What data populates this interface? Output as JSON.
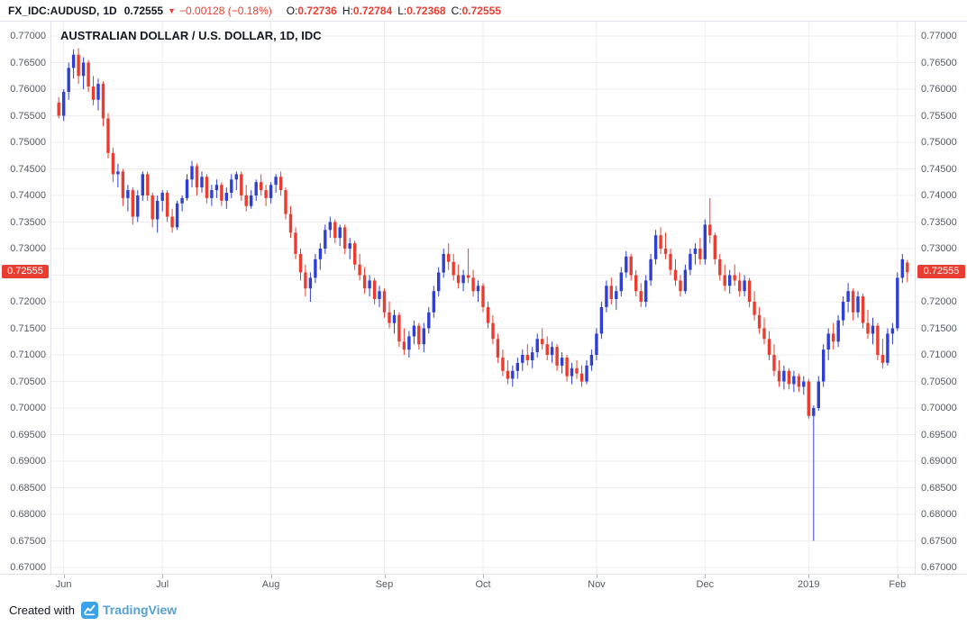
{
  "header": {
    "symbol": "FX_IDC:AUDUSD,",
    "interval": "1D",
    "last_price": "0.72555",
    "direction_icon": "▼",
    "change": "−0.00128 (−0.18%)",
    "ohlc": {
      "o_label": "O:",
      "o": "0.72736",
      "h_label": "H:",
      "h": "0.72784",
      "l_label": "L:",
      "l": "0.72368",
      "c_label": "C:",
      "c": "0.72555"
    }
  },
  "chart": {
    "title": "AUSTRALIAN DOLLAR / U.S. DOLLAR, 1D, IDC",
    "price_label": "0.72555"
  },
  "footer": {
    "created_with": "Created with",
    "brand": "TradingView"
  },
  "colors": {
    "up": "#2f3fd3",
    "down": "#ea3d32",
    "tag_bg": "#ea3d32",
    "grid": "#ededf0",
    "axis_text": "#555b66",
    "brand": "#3aa2e8"
  },
  "chart_data": {
    "type": "candlestick",
    "title": "AUSTRALIAN DOLLAR / U.S. DOLLAR, 1D, IDC",
    "symbol": "AUDUSD",
    "interval": "1D",
    "y_min": 0.67,
    "y_max": 0.77,
    "tick_step": 0.005,
    "last_close": 0.72555,
    "y_ticks": [
      "0.77000",
      "0.76500",
      "0.76000",
      "0.75500",
      "0.75000",
      "0.74500",
      "0.74000",
      "0.73500",
      "0.73000",
      "0.72500",
      "0.72000",
      "0.71500",
      "0.71000",
      "0.70500",
      "0.70000",
      "0.69500",
      "0.69000",
      "0.68500",
      "0.68000",
      "0.67500",
      "0.67000"
    ],
    "x_ticks": [
      {
        "label": "Jun",
        "index": 1
      },
      {
        "label": "Jul",
        "index": 21
      },
      {
        "label": "Aug",
        "index": 43
      },
      {
        "label": "Sep",
        "index": 66
      },
      {
        "label": "Oct",
        "index": 86
      },
      {
        "label": "Nov",
        "index": 109
      },
      {
        "label": "Dec",
        "index": 131
      },
      {
        "label": "2019",
        "index": 152
      },
      {
        "label": "Feb",
        "index": 170
      }
    ],
    "candles": [
      [
        0.7575,
        0.7585,
        0.7545,
        0.755
      ],
      [
        0.755,
        0.76,
        0.754,
        0.7595
      ],
      [
        0.7595,
        0.765,
        0.758,
        0.764
      ],
      [
        0.764,
        0.7675,
        0.762,
        0.7665
      ],
      [
        0.7665,
        0.7677,
        0.761,
        0.7625
      ],
      [
        0.7625,
        0.766,
        0.76,
        0.765
      ],
      [
        0.765,
        0.7655,
        0.7595,
        0.7605
      ],
      [
        0.7605,
        0.7625,
        0.757,
        0.758
      ],
      [
        0.758,
        0.762,
        0.756,
        0.761
      ],
      [
        0.761,
        0.7615,
        0.753,
        0.7545
      ],
      [
        0.7545,
        0.7555,
        0.747,
        0.748
      ],
      [
        0.748,
        0.749,
        0.7425,
        0.744
      ],
      [
        0.744,
        0.746,
        0.7415,
        0.7445
      ],
      [
        0.7445,
        0.745,
        0.738,
        0.7395
      ],
      [
        0.7395,
        0.742,
        0.737,
        0.741
      ],
      [
        0.741,
        0.7415,
        0.7345,
        0.736
      ],
      [
        0.736,
        0.741,
        0.735,
        0.74
      ],
      [
        0.74,
        0.7445,
        0.739,
        0.744
      ],
      [
        0.744,
        0.7445,
        0.739,
        0.74
      ],
      [
        0.74,
        0.7405,
        0.734,
        0.7355
      ],
      [
        0.7355,
        0.74,
        0.733,
        0.739
      ],
      [
        0.739,
        0.741,
        0.737,
        0.7405
      ],
      [
        0.7405,
        0.741,
        0.735,
        0.736
      ],
      [
        0.736,
        0.7375,
        0.733,
        0.734
      ],
      [
        0.734,
        0.739,
        0.7335,
        0.7385
      ],
      [
        0.7385,
        0.74,
        0.737,
        0.7395
      ],
      [
        0.7395,
        0.744,
        0.739,
        0.743
      ],
      [
        0.743,
        0.7465,
        0.7415,
        0.7455
      ],
      [
        0.7455,
        0.746,
        0.74,
        0.7415
      ],
      [
        0.7415,
        0.7445,
        0.7405,
        0.7435
      ],
      [
        0.7435,
        0.744,
        0.7385,
        0.7395
      ],
      [
        0.7395,
        0.742,
        0.738,
        0.741
      ],
      [
        0.741,
        0.743,
        0.7395,
        0.742
      ],
      [
        0.742,
        0.7425,
        0.738,
        0.739
      ],
      [
        0.739,
        0.7415,
        0.7375,
        0.7405
      ],
      [
        0.7405,
        0.744,
        0.7395,
        0.743
      ],
      [
        0.743,
        0.7445,
        0.741,
        0.744
      ],
      [
        0.744,
        0.7445,
        0.739,
        0.74
      ],
      [
        0.74,
        0.742,
        0.737,
        0.738
      ],
      [
        0.738,
        0.741,
        0.7375,
        0.74
      ],
      [
        0.74,
        0.743,
        0.739,
        0.7425
      ],
      [
        0.7425,
        0.744,
        0.74,
        0.741
      ],
      [
        0.741,
        0.742,
        0.738,
        0.7395
      ],
      [
        0.7395,
        0.7425,
        0.7385,
        0.742
      ],
      [
        0.742,
        0.744,
        0.7405,
        0.7435
      ],
      [
        0.7435,
        0.7445,
        0.74,
        0.741
      ],
      [
        0.741,
        0.7415,
        0.7355,
        0.7365
      ],
      [
        0.7365,
        0.738,
        0.732,
        0.733
      ],
      [
        0.733,
        0.734,
        0.728,
        0.729
      ],
      [
        0.729,
        0.73,
        0.724,
        0.7255
      ],
      [
        0.7255,
        0.727,
        0.721,
        0.7225
      ],
      [
        0.7225,
        0.7255,
        0.72,
        0.7245
      ],
      [
        0.7245,
        0.729,
        0.7235,
        0.728
      ],
      [
        0.728,
        0.731,
        0.726,
        0.73
      ],
      [
        0.73,
        0.7345,
        0.729,
        0.7335
      ],
      [
        0.7335,
        0.736,
        0.732,
        0.735
      ],
      [
        0.735,
        0.7355,
        0.731,
        0.732
      ],
      [
        0.732,
        0.7345,
        0.7305,
        0.734
      ],
      [
        0.734,
        0.7345,
        0.729,
        0.73
      ],
      [
        0.73,
        0.732,
        0.728,
        0.731
      ],
      [
        0.731,
        0.7315,
        0.726,
        0.727
      ],
      [
        0.727,
        0.729,
        0.724,
        0.725
      ],
      [
        0.725,
        0.7265,
        0.7215,
        0.7225
      ],
      [
        0.7225,
        0.725,
        0.721,
        0.724
      ],
      [
        0.724,
        0.7245,
        0.7195,
        0.7205
      ],
      [
        0.7205,
        0.723,
        0.719,
        0.722
      ],
      [
        0.722,
        0.7225,
        0.717,
        0.718
      ],
      [
        0.718,
        0.72,
        0.715,
        0.716
      ],
      [
        0.716,
        0.7185,
        0.714,
        0.7175
      ],
      [
        0.7175,
        0.718,
        0.7115,
        0.7125
      ],
      [
        0.7125,
        0.715,
        0.71,
        0.711
      ],
      [
        0.711,
        0.7145,
        0.7095,
        0.7135
      ],
      [
        0.7135,
        0.7165,
        0.712,
        0.7155
      ],
      [
        0.7155,
        0.716,
        0.711,
        0.712
      ],
      [
        0.712,
        0.716,
        0.7105,
        0.715
      ],
      [
        0.715,
        0.719,
        0.714,
        0.718
      ],
      [
        0.718,
        0.723,
        0.717,
        0.722
      ],
      [
        0.722,
        0.7265,
        0.721,
        0.7255
      ],
      [
        0.7255,
        0.73,
        0.7245,
        0.729
      ],
      [
        0.729,
        0.731,
        0.726,
        0.7275
      ],
      [
        0.7275,
        0.729,
        0.724,
        0.725
      ],
      [
        0.725,
        0.727,
        0.7225,
        0.7235
      ],
      [
        0.7235,
        0.726,
        0.722,
        0.725
      ],
      [
        0.725,
        0.73,
        0.7235,
        0.7245
      ],
      [
        0.7245,
        0.726,
        0.721,
        0.722
      ],
      [
        0.722,
        0.724,
        0.72,
        0.723
      ],
      [
        0.723,
        0.7235,
        0.718,
        0.719
      ],
      [
        0.719,
        0.72,
        0.715,
        0.716
      ],
      [
        0.716,
        0.7175,
        0.712,
        0.713
      ],
      [
        0.713,
        0.714,
        0.7085,
        0.7095
      ],
      [
        0.7095,
        0.711,
        0.706,
        0.707
      ],
      [
        0.707,
        0.709,
        0.7045,
        0.7055
      ],
      [
        0.7055,
        0.708,
        0.704,
        0.707
      ],
      [
        0.707,
        0.7095,
        0.7055,
        0.7085
      ],
      [
        0.7085,
        0.711,
        0.707,
        0.71
      ],
      [
        0.71,
        0.712,
        0.708,
        0.709
      ],
      [
        0.709,
        0.7115,
        0.7075,
        0.7105
      ],
      [
        0.7105,
        0.714,
        0.7095,
        0.713
      ],
      [
        0.713,
        0.715,
        0.711,
        0.712
      ],
      [
        0.712,
        0.7135,
        0.709,
        0.71
      ],
      [
        0.71,
        0.7125,
        0.7085,
        0.7115
      ],
      [
        0.7115,
        0.712,
        0.707,
        0.708
      ],
      [
        0.708,
        0.7105,
        0.7065,
        0.7095
      ],
      [
        0.7095,
        0.71,
        0.705,
        0.706
      ],
      [
        0.706,
        0.7085,
        0.7045,
        0.7075
      ],
      [
        0.7075,
        0.709,
        0.7055,
        0.7065
      ],
      [
        0.7065,
        0.708,
        0.704,
        0.705
      ],
      [
        0.705,
        0.709,
        0.7045,
        0.708
      ],
      [
        0.708,
        0.711,
        0.707,
        0.71
      ],
      [
        0.71,
        0.715,
        0.709,
        0.714
      ],
      [
        0.714,
        0.72,
        0.713,
        0.719
      ],
      [
        0.719,
        0.724,
        0.718,
        0.723
      ],
      [
        0.723,
        0.7245,
        0.7195,
        0.7205
      ],
      [
        0.7205,
        0.723,
        0.7185,
        0.722
      ],
      [
        0.722,
        0.7265,
        0.721,
        0.7255
      ],
      [
        0.7255,
        0.7295,
        0.7245,
        0.7285
      ],
      [
        0.7285,
        0.729,
        0.724,
        0.725
      ],
      [
        0.725,
        0.726,
        0.721,
        0.722
      ],
      [
        0.722,
        0.7235,
        0.719,
        0.72
      ],
      [
        0.72,
        0.725,
        0.719,
        0.724
      ],
      [
        0.724,
        0.729,
        0.723,
        0.728
      ],
      [
        0.728,
        0.7335,
        0.727,
        0.7325
      ],
      [
        0.7325,
        0.734,
        0.729,
        0.73
      ],
      [
        0.73,
        0.733,
        0.728,
        0.729
      ],
      [
        0.729,
        0.73,
        0.725,
        0.726
      ],
      [
        0.726,
        0.728,
        0.723,
        0.724
      ],
      [
        0.724,
        0.725,
        0.721,
        0.722
      ],
      [
        0.722,
        0.727,
        0.7215,
        0.726
      ],
      [
        0.726,
        0.73,
        0.725,
        0.729
      ],
      [
        0.729,
        0.731,
        0.727,
        0.73
      ],
      [
        0.73,
        0.732,
        0.727,
        0.728
      ],
      [
        0.728,
        0.7355,
        0.727,
        0.7345
      ],
      [
        0.7345,
        0.7395,
        0.731,
        0.7325
      ],
      [
        0.7325,
        0.733,
        0.727,
        0.728
      ],
      [
        0.728,
        0.729,
        0.724,
        0.725
      ],
      [
        0.725,
        0.727,
        0.722,
        0.723
      ],
      [
        0.723,
        0.726,
        0.7215,
        0.725
      ],
      [
        0.725,
        0.727,
        0.723,
        0.724
      ],
      [
        0.724,
        0.7255,
        0.721,
        0.722
      ],
      [
        0.722,
        0.725,
        0.721,
        0.724
      ],
      [
        0.724,
        0.7245,
        0.719,
        0.72
      ],
      [
        0.72,
        0.722,
        0.7165,
        0.7175
      ],
      [
        0.7175,
        0.719,
        0.714,
        0.715
      ],
      [
        0.715,
        0.717,
        0.712,
        0.713
      ],
      [
        0.713,
        0.7145,
        0.709,
        0.71
      ],
      [
        0.71,
        0.712,
        0.706,
        0.707
      ],
      [
        0.707,
        0.709,
        0.704,
        0.705
      ],
      [
        0.705,
        0.708,
        0.7035,
        0.707
      ],
      [
        0.707,
        0.7075,
        0.7035,
        0.7045
      ],
      [
        0.7045,
        0.707,
        0.703,
        0.706
      ],
      [
        0.706,
        0.7065,
        0.703,
        0.704
      ],
      [
        0.704,
        0.706,
        0.7025,
        0.705
      ],
      [
        0.705,
        0.7055,
        0.698,
        0.6985
      ],
      [
        0.6985,
        0.7005,
        0.675,
        0.7
      ],
      [
        0.7,
        0.706,
        0.6995,
        0.705
      ],
      [
        0.705,
        0.712,
        0.704,
        0.711
      ],
      [
        0.711,
        0.715,
        0.709,
        0.714
      ],
      [
        0.714,
        0.716,
        0.711,
        0.7125
      ],
      [
        0.7125,
        0.7175,
        0.7115,
        0.7165
      ],
      [
        0.7165,
        0.721,
        0.7155,
        0.72
      ],
      [
        0.72,
        0.7235,
        0.718,
        0.722
      ],
      [
        0.722,
        0.7225,
        0.7165,
        0.718
      ],
      [
        0.718,
        0.722,
        0.717,
        0.721
      ],
      [
        0.721,
        0.7215,
        0.715,
        0.716
      ],
      [
        0.716,
        0.7185,
        0.713,
        0.714
      ],
      [
        0.714,
        0.717,
        0.712,
        0.7155
      ],
      [
        0.7155,
        0.716,
        0.709,
        0.71
      ],
      [
        0.71,
        0.713,
        0.7075,
        0.7085
      ],
      [
        0.7085,
        0.715,
        0.708,
        0.714
      ],
      [
        0.714,
        0.716,
        0.712,
        0.715
      ],
      [
        0.715,
        0.7255,
        0.7145,
        0.7245
      ],
      [
        0.7245,
        0.729,
        0.7235,
        0.728
      ],
      [
        0.72736,
        0.72784,
        0.72368,
        0.72555
      ]
    ]
  }
}
